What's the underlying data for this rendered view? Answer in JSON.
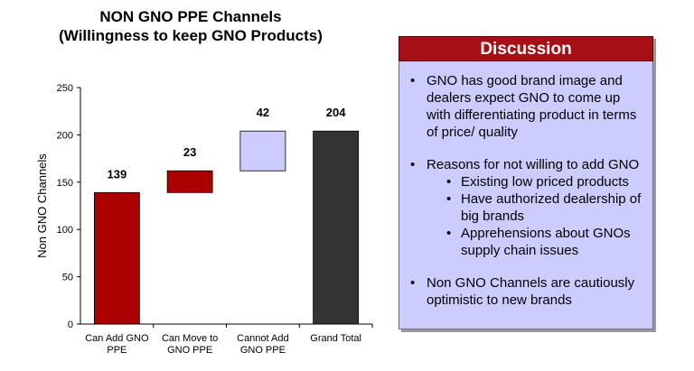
{
  "chart_data": {
    "type": "waterfall",
    "title_lines": [
      "NON GNO PPE Channels",
      "(Willingness  to keep GNO Products)"
    ],
    "ylabel": "Non GNO Channels",
    "ylim": [
      0,
      250
    ],
    "yticks": [
      0,
      50,
      100,
      150,
      200,
      250
    ],
    "categories": [
      "Can Add GNO PPE",
      "Can Move to GNO PPE",
      "Cannot Add GNO PPE",
      "Grand Total"
    ],
    "category_lines": [
      [
        "Can Add GNO",
        "PPE"
      ],
      [
        "Can Move to",
        "GNO PPE"
      ],
      [
        "Cannot Add",
        "GNO PPE"
      ],
      [
        "Grand Total"
      ]
    ],
    "values": [
      139,
      23,
      42,
      204
    ],
    "bases": [
      0,
      139,
      162,
      0
    ],
    "labels": [
      "139",
      "23",
      "42",
      "204"
    ],
    "colors": [
      "#aa0000",
      "#aa0000",
      "#ccccff",
      "#333333"
    ],
    "grid": false,
    "legend": "none"
  },
  "discussion": {
    "title": "Discussion",
    "points": [
      {
        "text": "GNO has good brand image and dealers expect GNO to come up with differentiating product in terms of price/ quality"
      },
      {
        "text": "Reasons for not willing to add GNO",
        "subpoints": [
          "Existing low priced products",
          "Have authorized dealership of big brands",
          "Apprehensions about GNOs supply chain issues"
        ]
      },
      {
        "text": "Non GNO Channels are cautiously optimistic to new brands"
      }
    ]
  }
}
